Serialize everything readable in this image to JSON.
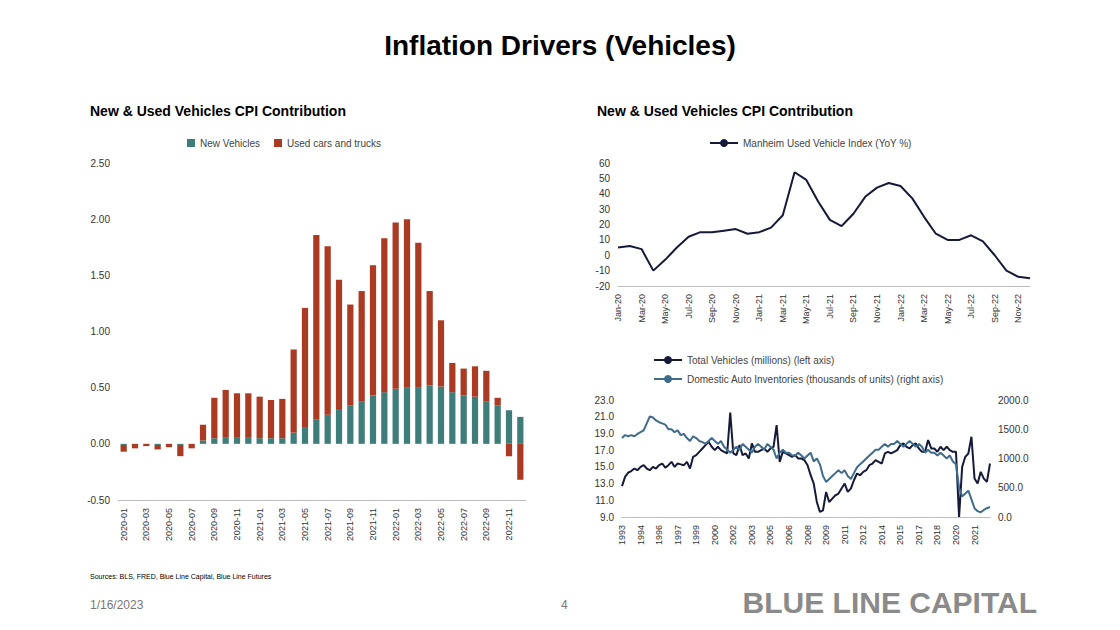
{
  "title": "Inflation Drivers (Vehicles)",
  "source": "Sources: BLS, FRED, Blue Line Capital, Blue Line Futures",
  "date": "1/16/2023",
  "page": 4,
  "brand": "BLUE LINE CAPITAL",
  "chart_data": [
    {
      "type": "bar",
      "title": "New & Used Vehicles CPI Contribution",
      "stacked": true,
      "grid": false,
      "legend": "top",
      "categories": [
        "2020-01",
        null,
        "2020-03",
        null,
        "2020-05",
        null,
        "2020-07",
        null,
        "2020-09",
        null,
        "2020-11",
        null,
        "2021-01",
        null,
        "2021-03",
        null,
        "2021-05",
        null,
        "2021-07",
        null,
        "2021-09",
        null,
        "2021-11",
        null,
        "2022-01",
        null,
        "2022-03",
        null,
        "2022-05",
        null,
        "2022-07",
        null,
        "2022-09",
        null,
        "2022-11",
        null
      ],
      "series": [
        {
          "name": "New Vehicles",
          "color": "#3e7d79",
          "values": [
            -0.01,
            0,
            0,
            -0.01,
            0,
            -0.01,
            0,
            0.03,
            0.05,
            0.06,
            0.06,
            0.06,
            0.05,
            0.05,
            0.05,
            0.1,
            0.15,
            0.22,
            0.26,
            0.31,
            0.34,
            0.38,
            0.43,
            0.46,
            0.49,
            0.5,
            0.5,
            0.52,
            0.51,
            0.46,
            0.43,
            0.42,
            0.38,
            0.34,
            0.3,
            0.24
          ]
        },
        {
          "name": "Used cars and trucks",
          "color": "#ab3a22",
          "values": [
            -0.06,
            -0.04,
            -0.02,
            -0.04,
            -0.03,
            -0.1,
            -0.04,
            0.14,
            0.36,
            0.42,
            0.39,
            0.39,
            0.37,
            0.34,
            0.35,
            0.74,
            1.06,
            1.64,
            1.5,
            1.15,
            0.9,
            0.98,
            1.16,
            1.37,
            1.48,
            1.5,
            1.29,
            0.84,
            0.59,
            0.26,
            0.24,
            0.27,
            0.27,
            0.07,
            -0.11,
            -0.32
          ]
        }
      ],
      "ylim": [
        -0.5,
        2.5
      ],
      "yticks": [
        {
          "value": -0.5,
          "label": "-0.50"
        },
        {
          "value": 0,
          "label": "0.00"
        },
        {
          "value": 0.5,
          "label": "0.50"
        },
        {
          "value": 1,
          "label": "1.00"
        },
        {
          "value": 1.5,
          "label": "1.50"
        },
        {
          "value": 2,
          "label": "2.00"
        },
        {
          "value": 2.5,
          "label": "2.50"
        }
      ]
    },
    {
      "type": "line",
      "title": "New & Used Vehicles CPI Contribution",
      "grid": false,
      "legend": "top",
      "categories": [
        "Jan-20",
        null,
        "Mar-20",
        null,
        "May-20",
        null,
        "Jul-20",
        null,
        "Sep-20",
        null,
        "Nov-20",
        null,
        "Jan-21",
        null,
        "Mar-21",
        null,
        "May-21",
        null,
        "Jul-21",
        null,
        "Sep-21",
        null,
        "Nov-21",
        null,
        "Jan-22",
        null,
        "Mar-22",
        null,
        "May-22",
        null,
        "Jul-22",
        null,
        "Sep-22",
        null,
        "Nov-22",
        null
      ],
      "series": [
        {
          "name": "Manheim Used Vehicle Index (YoY %)",
          "color": "#15193a",
          "values": [
            5,
            6,
            4,
            -10,
            -3,
            5,
            12,
            15,
            15,
            16,
            17,
            14,
            15,
            18,
            26,
            54,
            49,
            35,
            23,
            19,
            27,
            38,
            44,
            47,
            45,
            37,
            25,
            14,
            10,
            10,
            13,
            9,
            0,
            -10,
            -14,
            -15
          ]
        }
      ],
      "ylim": [
        -20,
        60
      ],
      "yticks": [
        -20,
        -10,
        0,
        10,
        20,
        30,
        40,
        50,
        60
      ]
    },
    {
      "type": "line",
      "grid": false,
      "legend": "top-left",
      "categories": [
        "1993",
        null,
        null,
        null,
        null,
        null,
        "1994",
        null,
        null,
        null,
        null,
        null,
        "1996",
        null,
        null,
        null,
        null,
        null,
        "1997",
        null,
        null,
        null,
        null,
        null,
        "1999",
        null,
        null,
        null,
        null,
        null,
        "2000",
        null,
        null,
        null,
        null,
        null,
        "2002",
        null,
        null,
        null,
        null,
        null,
        "2003",
        null,
        null,
        null,
        null,
        null,
        "2005",
        null,
        null,
        null,
        null,
        null,
        "2006",
        null,
        null,
        null,
        null,
        null,
        "2008",
        null,
        null,
        null,
        null,
        null,
        "2009",
        null,
        null,
        null,
        null,
        null,
        "2011",
        null,
        null,
        null,
        null,
        null,
        "2012",
        null,
        null,
        null,
        null,
        null,
        "2014",
        null,
        null,
        null,
        null,
        null,
        "2015",
        null,
        null,
        null,
        null,
        null,
        "2017",
        null,
        null,
        null,
        null,
        null,
        "2018",
        null,
        null,
        null,
        null,
        null,
        "2020",
        null,
        null,
        null,
        null,
        null,
        "2021",
        null,
        null,
        null,
        null,
        null
      ],
      "series": [
        {
          "name": "Total Vehicles (millions) (left axis)",
          "color": "#15193a",
          "values": [
            12.7,
            13.8,
            14.3,
            14.5,
            14.8,
            14.6,
            15.0,
            15.2,
            14.8,
            14.6,
            15.0,
            14.8,
            15.2,
            15.4,
            14.9,
            15.2,
            15.6,
            15.0,
            15.4,
            15.3,
            15.2,
            15.6,
            14.8,
            16.2,
            16.4,
            16.8,
            17.2,
            17.6,
            18.0,
            17.4,
            17.0,
            17.4,
            17.0,
            16.8,
            16.6,
            21.5,
            16.6,
            16.4,
            17.6,
            16.4,
            16.6,
            16.0,
            17.8,
            16.8,
            16.8,
            17.0,
            17.2,
            16.8,
            17.2,
            17.4,
            20.0,
            15.6,
            16.8,
            16.6,
            16.4,
            16.2,
            16.4,
            16.0,
            16.0,
            15.8,
            15.2,
            14.0,
            13.0,
            10.8,
            9.6,
            9.8,
            12.0,
            10.8,
            11.2,
            11.6,
            11.8,
            12.4,
            13.0,
            12.0,
            12.4,
            13.4,
            14.2,
            14.0,
            14.4,
            14.6,
            15.2,
            15.4,
            15.8,
            15.6,
            15.4,
            16.6,
            16.8,
            16.6,
            16.8,
            17.0,
            17.6,
            17.8,
            17.4,
            17.2,
            17.6,
            17.8,
            17.2,
            16.8,
            16.8,
            18.2,
            17.2,
            17.2,
            16.8,
            17.4,
            17.0,
            17.4,
            17.0,
            16.8,
            16.8,
            9.0,
            15.0,
            16.2,
            16.6,
            18.6,
            13.6,
            13.0,
            14.4,
            13.6,
            13.2,
            15.4
          ]
        },
        {
          "name": "Domestic Auto Inventories (thousands of units) (right axis)",
          "color": "#3f6b8d",
          "axis": "y2",
          "values": [
            1350,
            1400,
            1380,
            1400,
            1380,
            1420,
            1450,
            1480,
            1600,
            1720,
            1700,
            1650,
            1620,
            1600,
            1580,
            1500,
            1500,
            1450,
            1480,
            1400,
            1420,
            1350,
            1300,
            1380,
            1350,
            1300,
            1280,
            1250,
            1300,
            1350,
            1300,
            1250,
            1300,
            1200,
            1150,
            1100,
            1150,
            1200,
            1150,
            1250,
            1200,
            1150,
            1100,
            1200,
            1250,
            1200,
            1150,
            1250,
            1200,
            1150,
            1000,
            1100,
            1150,
            1100,
            1100,
            1050,
            1050,
            1100,
            1050,
            1000,
            1050,
            1100,
            950,
            1000,
            900,
            700,
            600,
            650,
            700,
            750,
            800,
            750,
            800,
            700,
            650,
            750,
            850,
            900,
            950,
            1000,
            1050,
            1100,
            1150,
            1150,
            1200,
            1250,
            1200,
            1250,
            1250,
            1300,
            1250,
            1200,
            1250,
            1300,
            1250,
            1200,
            1250,
            1200,
            1100,
            1150,
            1100,
            1100,
            1050,
            1100,
            1050,
            1000,
            1050,
            950,
            900,
            500,
            350,
            400,
            450,
            300,
            150,
            100,
            80,
            120,
            150,
            170
          ]
        }
      ],
      "ylim": [
        9,
        23
      ],
      "yticks": [
        {
          "value": 9,
          "label": "9.0"
        },
        {
          "value": 11,
          "label": "11.0"
        },
        {
          "value": 13,
          "label": "13.0"
        },
        {
          "value": 15,
          "label": "15.0"
        },
        {
          "value": 17,
          "label": "17.0"
        },
        {
          "value": 19,
          "label": "19.0"
        },
        {
          "value": 21,
          "label": "21.0"
        },
        {
          "value": 23,
          "label": "23.0"
        }
      ],
      "y2lim": [
        0,
        2000
      ],
      "y2ticks": [
        {
          "value": 0,
          "label": "0.0"
        },
        {
          "value": 500,
          "label": "500.0"
        },
        {
          "value": 1000,
          "label": "1000.0"
        },
        {
          "value": 1500,
          "label": "1500.0"
        },
        {
          "value": 2000,
          "label": "2000.0"
        }
      ]
    }
  ]
}
